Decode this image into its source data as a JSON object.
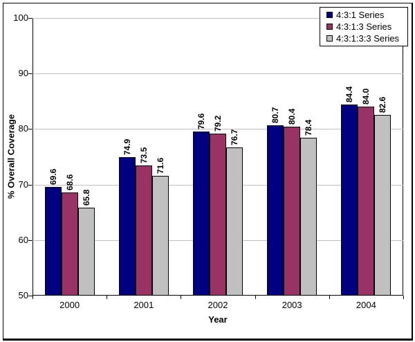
{
  "chart_data": {
    "type": "bar",
    "title": "",
    "xlabel": "Year",
    "ylabel": "% Overall Coverage",
    "ylim": [
      50,
      100
    ],
    "yticks": [
      50,
      60,
      70,
      80,
      90,
      100
    ],
    "categories": [
      "2000",
      "2001",
      "2002",
      "2003",
      "2004"
    ],
    "series": [
      {
        "name": "4:3:1 Series",
        "color": "#000080",
        "values": [
          69.6,
          74.9,
          79.6,
          80.7,
          84.4
        ],
        "labels": [
          "69.6",
          "74.9",
          "79.6",
          "80.7",
          "84.4"
        ]
      },
      {
        "name": "4:3:1:3 Series",
        "color": "#993366",
        "values": [
          68.6,
          73.5,
          79.2,
          80.4,
          84.0
        ],
        "labels": [
          "68.6",
          "73.5",
          "79.2",
          "80.4",
          "84.0"
        ]
      },
      {
        "name": "4:3:1:3:3 Series",
        "color": "#C0C0C0",
        "values": [
          65.8,
          71.6,
          76.7,
          78.4,
          82.6
        ],
        "labels": [
          "65.8",
          "71.6",
          "76.7",
          "78.4",
          "82.6"
        ]
      }
    ],
    "legend_position": "top-right",
    "grid": true,
    "gridline_color": "#C0C0C0",
    "axis_color": "#000000",
    "plot_bg": "#FFFFFF",
    "bar_border_color": "#000000"
  }
}
